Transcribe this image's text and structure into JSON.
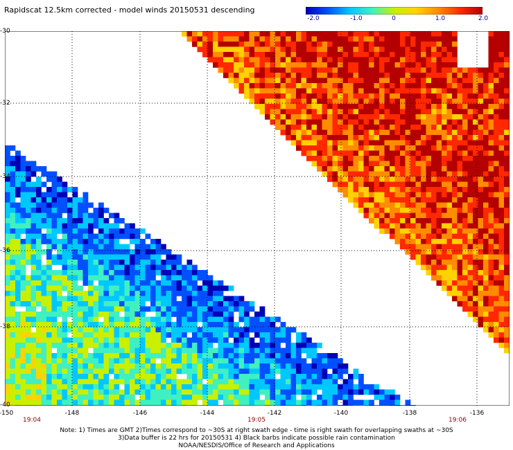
{
  "title": "Rapidscat 12.5km corrected - model winds 20150531 descending",
  "colorbar": {
    "labels": [
      "-2.0",
      "-1.0",
      "0",
      "1.0",
      "2.0"
    ],
    "min": -2.0,
    "max": 2.0,
    "colors": [
      "#0000b4",
      "#0050ff",
      "#00c8ff",
      "#40f0c0",
      "#c8f000",
      "#ffd200",
      "#ff8c00",
      "#ff2800",
      "#b40000"
    ]
  },
  "map": {
    "lon_range": [
      -150,
      -135
    ],
    "lat_range": [
      -40,
      -30
    ],
    "x_ticks": [
      "-150",
      "-148",
      "-146",
      "-144",
      "-142",
      "-140",
      "-138",
      "-136"
    ],
    "y_ticks": [
      "-30",
      "-32",
      "-34",
      "-36",
      "-38",
      "-40"
    ],
    "time_labels": [
      "19:04",
      "19:05",
      "19:06"
    ],
    "missing_color": "#ffffff"
  },
  "notes": [
    "Note: 1) Times are GMT 2)Times correspond to ~30S at right swath edge - time is right swath for overlapping swaths at ~30S",
    "3)Data buffer is 22 hrs for 20150531 4) Black barbs indicate possible rain contamination",
    "NOAA/NESDIS/Office of Research and Applications"
  ]
}
